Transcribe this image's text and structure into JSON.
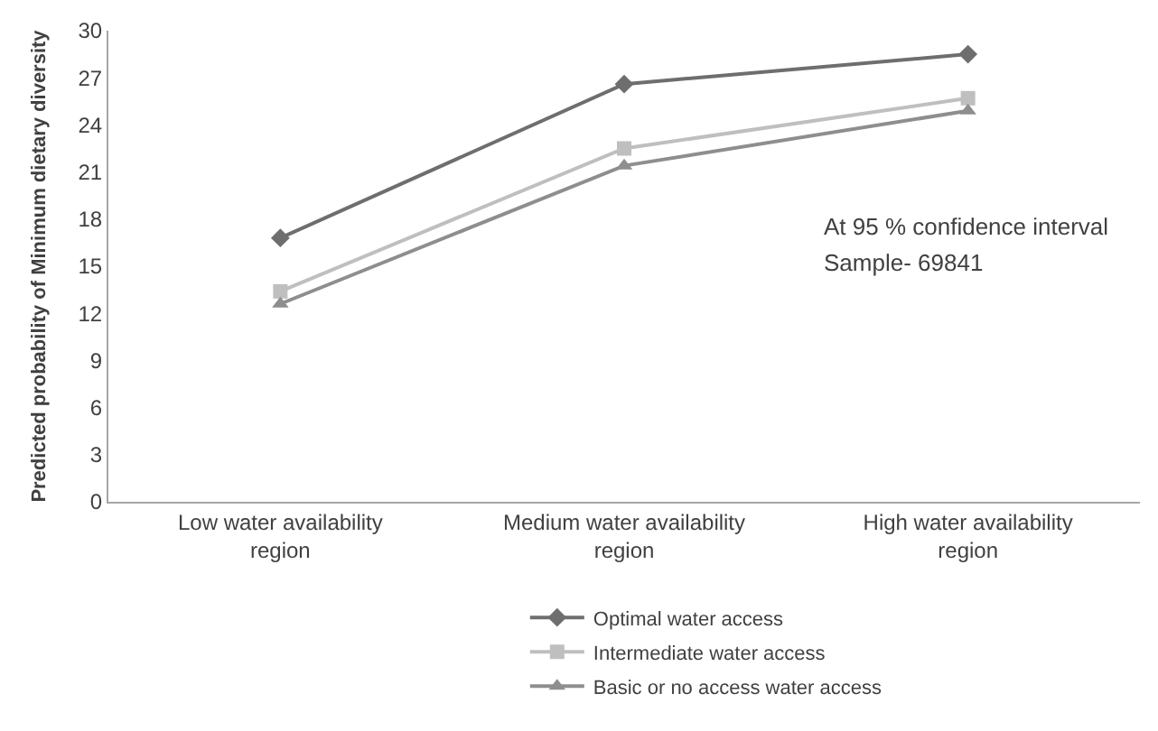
{
  "chart_data": {
    "type": "line",
    "ylabel": "Predicted probability of Minimum dietary diversity",
    "categories": [
      "Low water availability region",
      "Medium water availability region",
      "High water availability region"
    ],
    "series": [
      {
        "name": "Optimal water access",
        "color": "#6e6e6e",
        "marker": "diamond",
        "values": [
          16.8,
          26.6,
          28.5
        ]
      },
      {
        "name": "Intermediate water access",
        "color": "#bfbfbf",
        "marker": "square",
        "values": [
          13.4,
          22.5,
          25.7
        ]
      },
      {
        "name": "Basic or no access water access",
        "color": "#8e8e8e",
        "marker": "triangle",
        "values": [
          12.6,
          21.4,
          24.9
        ]
      }
    ],
    "ylim": [
      0,
      30
    ],
    "yticks": [
      0,
      3,
      6,
      9,
      12,
      15,
      18,
      21,
      24,
      27,
      30
    ],
    "annotations": [
      "At 95 % confidence interval",
      "Sample- 69841"
    ],
    "legend": "bottom",
    "line_style": "solid"
  }
}
